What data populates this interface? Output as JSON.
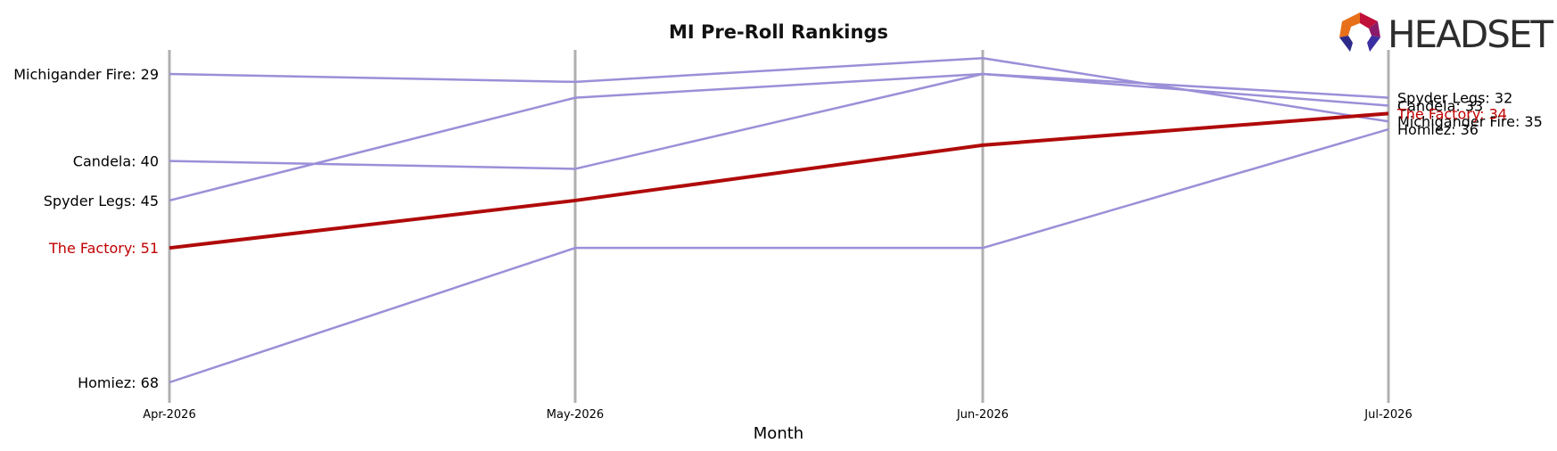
{
  "chart_data": {
    "type": "line",
    "title": "MI Pre-Roll Rankings",
    "xlabel": "Month",
    "ylabel": "",
    "categories": [
      "Apr-2026",
      "May-2026",
      "Jun-2026",
      "Jul-2026"
    ],
    "y_inverted": true,
    "grid": "vertical lines at each month",
    "series": [
      {
        "name": "Michigander Fire",
        "values": [
          29,
          30,
          27,
          35
        ],
        "color": "#9b8fd8",
        "highlight": false
      },
      {
        "name": "Candela",
        "values": [
          40,
          41,
          29,
          33
        ],
        "color": "#9b8fd8",
        "highlight": false
      },
      {
        "name": "Spyder Legs",
        "values": [
          45,
          32,
          29,
          32
        ],
        "color": "#9b8fd8",
        "highlight": false
      },
      {
        "name": "The Factory",
        "values": [
          51,
          45,
          38,
          34
        ],
        "color": "#b00a0a",
        "highlight": true
      },
      {
        "name": "Homiez",
        "values": [
          68,
          51,
          51,
          36
        ],
        "color": "#9b8fd8",
        "highlight": false
      }
    ],
    "colors": {
      "grid": "#b0b0b0",
      "highlight_label": "#c00000"
    }
  },
  "logo": {
    "text": "HEADSET"
  }
}
